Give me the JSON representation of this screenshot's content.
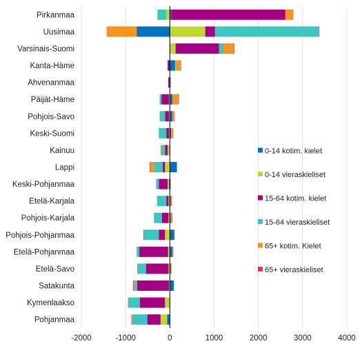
{
  "chart_data": {
    "type": "bar",
    "orientation": "horizontal",
    "stacked": true,
    "diverging": true,
    "categories": [
      "Pirkanmaa",
      "Uusimaa",
      "Varsinais-Suomi",
      "Kanta-Häme",
      "Ahvenanmaa",
      "Päijät-Häme",
      "Pohjois-Savo",
      "Keski-Suomi",
      "Kainuu",
      "Lappi",
      "Keski-Pohjanmaa",
      "Etelä-Karjala",
      "Pohjois-Karjala",
      "Pohjois-Pohjanmaa",
      "Etelä-Pohjanmaa",
      "Etelä-Savo",
      "Satakunta",
      "Kymenlaakso",
      "Pohjanmaa"
    ],
    "series": [
      {
        "name": "0-14 kotim. kielet",
        "color": "#0070c0",
        "values": [
          30,
          -750,
          10,
          120,
          -10,
          60,
          60,
          30,
          -10,
          160,
          -20,
          20,
          20,
          100,
          60,
          20,
          90,
          -10,
          -60
        ]
      },
      {
        "name": "0-14 vieraskieliset",
        "color": "#bfd730",
        "values": [
          -80,
          800,
          120,
          15,
          5,
          -20,
          -20,
          -20,
          -40,
          -110,
          -30,
          -30,
          -30,
          -110,
          -40,
          -30,
          -20,
          -100,
          -150
        ]
      },
      {
        "name": "15-64 kotim. kielet",
        "color": "#a50082",
        "values": [
          2580,
          220,
          980,
          -50,
          -25,
          -170,
          -90,
          -60,
          -60,
          -50,
          -200,
          -50,
          -150,
          -140,
          -650,
          -510,
          -720,
          -570,
          -300
        ]
      },
      {
        "name": "15-64 vieraskieliset",
        "color": "#3dc6bf",
        "values": [
          -200,
          2350,
          100,
          10,
          3,
          -40,
          -120,
          -170,
          -80,
          -200,
          -60,
          -210,
          -180,
          -340,
          -60,
          -190,
          -50,
          -250,
          -330
        ]
      },
      {
        "name": "65+ kotim. Kielet",
        "color": "#f7941d",
        "values": [
          170,
          -680,
          240,
          100,
          5,
          140,
          40,
          40,
          -20,
          -80,
          10,
          20,
          30,
          10,
          10,
          20,
          -20,
          -10,
          -20
        ]
      },
      {
        "name": "65+ vieraskieliset",
        "color": "#e5317c",
        "values": [
          10,
          10,
          10,
          3,
          1,
          5,
          5,
          5,
          3,
          -15,
          3,
          3,
          3,
          -10,
          3,
          -5,
          -20,
          -5,
          -10
        ]
      }
    ],
    "xlim": [
      -2000,
      4000
    ],
    "xticks": [
      "-2000",
      "-1000",
      "0",
      "1000",
      "2000",
      "3000",
      "4000"
    ],
    "grid": "vertical",
    "legend_position": "right"
  }
}
